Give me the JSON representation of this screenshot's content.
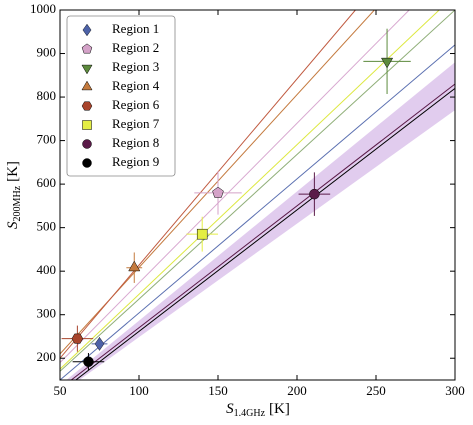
{
  "chart_data": {
    "type": "scatter",
    "xlabel": {
      "symbol": "S",
      "subscript": "1.4GHz",
      "unit": "[K]"
    },
    "ylabel": {
      "symbol": "S",
      "subscript": "200MHz",
      "unit": "[K]"
    },
    "xlim": [
      50,
      300
    ],
    "xticks": [
      50,
      100,
      150,
      200,
      250,
      300
    ],
    "ylim": [
      150,
      1000
    ],
    "yticks": [
      200,
      300,
      400,
      500,
      600,
      700,
      800,
      900,
      1000
    ],
    "legend": "upper left",
    "band": {
      "color": "#d9bfea",
      "x": [
        50,
        300
      ],
      "lower": [
        118,
        770
      ],
      "upper": [
        138,
        880
      ]
    },
    "series": [
      {
        "name": "Region 1",
        "color": "#4d62a8",
        "marker": "diamond",
        "x": [
          75
        ],
        "y": [
          233
        ],
        "xerr": [
          5
        ],
        "yerr": [
          15
        ],
        "line": {
          "color": "#5a6fb0",
          "x": [
            50,
            300
          ],
          "y": [
            150,
            920
          ]
        }
      },
      {
        "name": "Region 2",
        "color": "#d4a2c8",
        "marker": "pentagon",
        "x": [
          150
        ],
        "y": [
          580
        ],
        "xerr": [
          15
        ],
        "yerr": [
          50
        ],
        "line": {
          "color": "#d8a8d0",
          "x": [
            50,
            271
          ],
          "y": [
            190,
            1000
          ]
        }
      },
      {
        "name": "Region 3",
        "color": "#5c8a3c",
        "marker": "triangle-down",
        "x": [
          257
        ],
        "y": [
          882
        ],
        "xerr": [
          15
        ],
        "yerr": [
          75
        ],
        "line": {
          "color": "#8fae78",
          "x": [
            50,
            300
          ],
          "y": [
            170,
            1000
          ]
        }
      },
      {
        "name": "Region 4",
        "color": "#c47a3e",
        "marker": "triangle-up",
        "x": [
          97
        ],
        "y": [
          408
        ],
        "xerr": [
          5
        ],
        "yerr": [
          35
        ],
        "line": {
          "color": "#c47a3e",
          "x": [
            50,
            249
          ],
          "y": [
            210,
            1000
          ]
        }
      },
      {
        "name": "Region 6",
        "color": "#a8442c",
        "marker": "hexagon",
        "x": [
          61
        ],
        "y": [
          245
        ],
        "xerr": [
          10
        ],
        "yerr": [
          30
        ],
        "line": {
          "color": "#c05a40",
          "x": [
            50,
            237
          ],
          "y": [
            200,
            1000
          ]
        }
      },
      {
        "name": "Region 7",
        "color": "#e4ee44",
        "marker": "square",
        "x": [
          140
        ],
        "y": [
          485
        ],
        "xerr": [
          10
        ],
        "yerr": [
          40
        ],
        "line": {
          "color": "#dde840",
          "x": [
            50,
            290
          ],
          "y": [
            175,
            1000
          ]
        }
      },
      {
        "name": "Region 8",
        "color": "#5a1a48",
        "marker": "circle",
        "x": [
          211
        ],
        "y": [
          577
        ],
        "xerr": [
          10
        ],
        "yerr": [
          50
        ],
        "line": {
          "color": "#5a1a48",
          "x": [
            50,
            300
          ],
          "y": [
            130,
            830
          ]
        }
      },
      {
        "name": "Region 9",
        "color": "#000000",
        "marker": "circle",
        "x": [
          68
        ],
        "y": [
          192
        ],
        "xerr": [
          10
        ],
        "yerr": [
          20
        ],
        "line": {
          "color": "#000000",
          "x": [
            50,
            300
          ],
          "y": [
            122,
            820
          ]
        }
      }
    ]
  }
}
